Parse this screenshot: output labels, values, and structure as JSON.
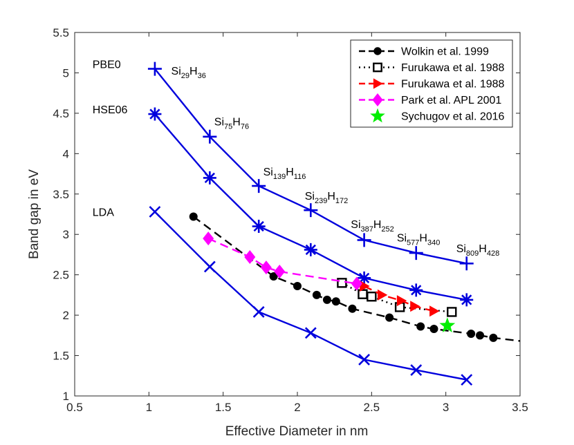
{
  "chart_data": {
    "type": "line",
    "title": "",
    "xlabel": "Effective Diameter in nm",
    "ylabel": "Band gap in eV",
    "xlim": [
      0.5,
      3.5
    ],
    "ylim": [
      1,
      5.5
    ],
    "xticks": [
      "0.5",
      "1",
      "1.5",
      "2",
      "2.5",
      "3",
      "3.5"
    ],
    "yticks": [
      "1",
      "1.5",
      "2",
      "2.5",
      "3",
      "3.5",
      "4",
      "4.5",
      "5",
      "5.5"
    ],
    "grid": false,
    "legend_position": "top-right",
    "colors": {
      "blue": "#0000dd",
      "black": "#000000",
      "red": "#ff0000",
      "magenta": "#ff00ff",
      "green": "#00ee00",
      "axis": "#262626"
    },
    "series": [
      {
        "name": "PBE0",
        "marker": "plus",
        "color": "#0000dd",
        "linestyle": "solid",
        "x": [
          1.04,
          1.41,
          1.74,
          2.09,
          2.45,
          2.8,
          3.14
        ],
        "y": [
          5.05,
          4.21,
          3.6,
          3.3,
          2.93,
          2.77,
          2.64
        ]
      },
      {
        "name": "HSE06",
        "marker": "asterisk",
        "color": "#0000dd",
        "linestyle": "solid",
        "x": [
          1.04,
          1.41,
          1.74,
          2.09,
          2.45,
          2.8,
          3.14
        ],
        "y": [
          4.49,
          3.7,
          3.1,
          2.81,
          2.46,
          2.31,
          2.19
        ]
      },
      {
        "name": "LDA",
        "marker": "cross",
        "color": "#0000dd",
        "linestyle": "solid",
        "x": [
          1.04,
          1.41,
          1.74,
          2.09,
          2.45,
          2.8,
          3.14
        ],
        "y": [
          3.28,
          2.6,
          2.04,
          1.78,
          1.45,
          1.32,
          1.2
        ]
      },
      {
        "name": "Wolkin et al. 1999",
        "marker": "circle",
        "color": "#000000",
        "linestyle": "dashed",
        "x": [
          1.3,
          1.84,
          2.0,
          2.13,
          2.2,
          2.26,
          2.37,
          2.62,
          2.83,
          2.92,
          3.17,
          3.23,
          3.32
        ],
        "y": [
          3.22,
          2.48,
          2.36,
          2.25,
          2.19,
          2.17,
          2.08,
          1.97,
          1.86,
          1.83,
          1.77,
          1.75,
          1.72
        ],
        "line_x": [
          1.3,
          3.5
        ],
        "line_y": [
          3.22,
          1.68
        ]
      },
      {
        "name": "Furukawa et al. 1988",
        "marker": "square-open",
        "color": "#000000",
        "linestyle": "dotted",
        "x": [
          2.3,
          2.44,
          2.5,
          2.69,
          3.04
        ],
        "y": [
          2.4,
          2.26,
          2.23,
          2.1,
          2.04
        ]
      },
      {
        "name": "Furukawa et al. 1988",
        "marker": "triangle-right",
        "color": "#ff0000",
        "linestyle": "dashed",
        "x": [
          2.45,
          2.57,
          2.7,
          2.79,
          2.92
        ],
        "y": [
          2.36,
          2.25,
          2.18,
          2.11,
          2.05
        ]
      },
      {
        "name": "Park et al. APL 2001",
        "marker": "diamond",
        "color": "#ff00ff",
        "linestyle": "dashed",
        "x": [
          1.4,
          1.68,
          1.79,
          1.88,
          2.4
        ],
        "y": [
          2.95,
          2.72,
          2.59,
          2.54,
          2.39
        ]
      },
      {
        "name": "Sychugov et al. 2016",
        "marker": "star",
        "color": "#00ee00",
        "linestyle": "none",
        "x": [
          3.01
        ],
        "y": [
          1.87
        ]
      }
    ],
    "annotations": [
      {
        "text": "PBE0",
        "x": 0.62,
        "y": 5.06
      },
      {
        "text": "HSE06",
        "x": 0.62,
        "y": 4.5
      },
      {
        "text": "LDA",
        "x": 0.62,
        "y": 3.23
      },
      {
        "text": "Si",
        "sub1": "29",
        "mid": "H",
        "sub2": "36",
        "x": 1.15,
        "y": 4.98
      },
      {
        "text": "Si",
        "sub1": "75",
        "mid": "H",
        "sub2": "76",
        "x": 1.44,
        "y": 4.35
      },
      {
        "text": "Si",
        "sub1": "139",
        "mid": "H",
        "sub2": "116",
        "x": 1.77,
        "y": 3.73
      },
      {
        "text": "Si",
        "sub1": "239",
        "mid": "H",
        "sub2": "172",
        "x": 2.05,
        "y": 3.43
      },
      {
        "text": "Si",
        "sub1": "387",
        "mid": "H",
        "sub2": "252",
        "x": 2.36,
        "y": 3.08
      },
      {
        "text": "Si",
        "sub1": "577",
        "mid": "H",
        "sub2": "340",
        "x": 2.67,
        "y": 2.91
      },
      {
        "text": "Si",
        "sub1": "809",
        "mid": "H",
        "sub2": "428",
        "x": 3.07,
        "y": 2.78
      }
    ]
  }
}
